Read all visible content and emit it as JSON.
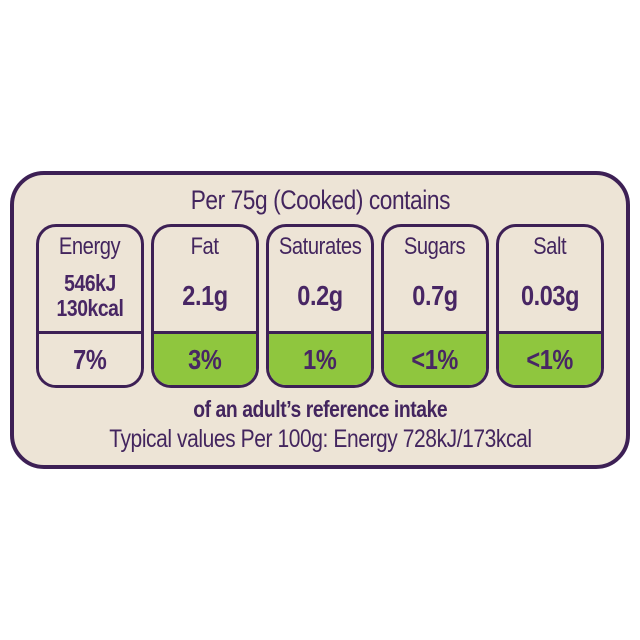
{
  "label": {
    "header": "Per 75g (Cooked) contains",
    "columns": [
      {
        "name": "Energy",
        "value_lines": [
          "546kJ",
          "130kcal"
        ],
        "percent": "7%",
        "percent_bg": "cream"
      },
      {
        "name": "Fat",
        "value_lines": [
          "2.1g"
        ],
        "percent": "3%",
        "percent_bg": "green"
      },
      {
        "name": "Saturates",
        "value_lines": [
          "0.2g"
        ],
        "percent": "1%",
        "percent_bg": "green"
      },
      {
        "name": "Sugars",
        "value_lines": [
          "0.7g"
        ],
        "percent": "<1%",
        "percent_bg": "green"
      },
      {
        "name": "Salt",
        "value_lines": [
          "0.03g"
        ],
        "percent": "<1%",
        "percent_bg": "green"
      }
    ],
    "footer_bold": "of an adult’s reference intake",
    "footer_note": "Typical values Per 100g: Energy 728kJ/173kcal",
    "colors": {
      "panel_background": "#EDE4D6",
      "border_purple": "#3D2055",
      "text_purple": "#482664",
      "low_green": "#8FC63E",
      "page_background": "#FFFFFF"
    }
  }
}
